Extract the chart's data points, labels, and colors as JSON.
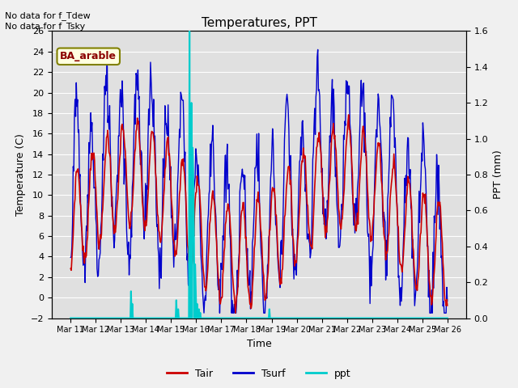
{
  "title": "Temperatures, PPT",
  "xlabel": "Time",
  "ylabel_left": "Temperature (C)",
  "ylabel_right": "PPT (mm)",
  "annotation_top": "No data for f_Tdew\nNo data for f_Tsky",
  "site_label": "BA_arable",
  "fig_facecolor": "#f0f0f0",
  "plot_bg_color": "#e0e0e0",
  "x_tick_labels": [
    "Mar 11",
    "Mar 12",
    "Mar 13",
    "Mar 14",
    "Mar 15",
    "Mar 16",
    "Mar 17",
    "Mar 18",
    "Mar 19",
    "Mar 20",
    "Mar 21",
    "Mar 22",
    "Mar 23",
    "Mar 24",
    "Mar 25",
    "Mar 26"
  ],
  "ylim_left": [
    -2,
    26
  ],
  "ylim_right": [
    0.0,
    1.6
  ],
  "yticks_left": [
    -2,
    0,
    2,
    4,
    6,
    8,
    10,
    12,
    14,
    16,
    18,
    20,
    22,
    24,
    26
  ],
  "yticks_right": [
    0.0,
    0.2,
    0.4,
    0.6,
    0.8,
    1.0,
    1.2,
    1.4,
    1.6
  ],
  "color_tair": "#cc0000",
  "color_tsurf": "#0000cc",
  "color_ppt": "#00cccc",
  "grid_color": "#ffffff",
  "n_points": 600,
  "days": 25
}
